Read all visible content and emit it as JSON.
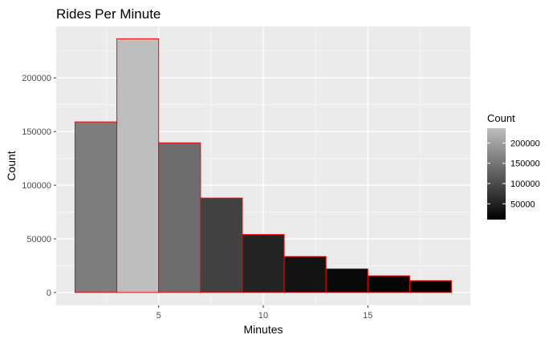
{
  "chart_data": {
    "type": "bar",
    "title": "Rides Per Minute",
    "xlabel": "Minutes",
    "ylabel": "Count",
    "bins": [
      {
        "x0": 1,
        "x1": 3,
        "value": 159000
      },
      {
        "x0": 3,
        "x1": 5,
        "value": 236500
      },
      {
        "x0": 5,
        "x1": 7,
        "value": 139500
      },
      {
        "x0": 7,
        "x1": 9,
        "value": 88000
      },
      {
        "x0": 9,
        "x1": 11,
        "value": 54000
      },
      {
        "x0": 11,
        "x1": 13,
        "value": 33500
      },
      {
        "x0": 13,
        "x1": 15,
        "value": 22000
      },
      {
        "x0": 15,
        "x1": 17,
        "value": 15500
      },
      {
        "x0": 17,
        "x1": 19,
        "value": 11000
      }
    ],
    "xlim": [
      0.1,
      19.9
    ],
    "ylim": [
      -12000,
      248000
    ],
    "xticks": [
      5,
      10,
      15
    ],
    "yticks": [
      0,
      50000,
      100000,
      150000,
      200000
    ],
    "grid": true,
    "bar_outline_color": "#ff0000",
    "panel_background": "#ebebeb",
    "legend": {
      "title": "Count",
      "position": "right",
      "ticks": [
        50000,
        100000,
        150000,
        200000
      ],
      "range": [
        11000,
        236500
      ],
      "low_color": "#000000",
      "high_color": "#bebebe"
    }
  }
}
